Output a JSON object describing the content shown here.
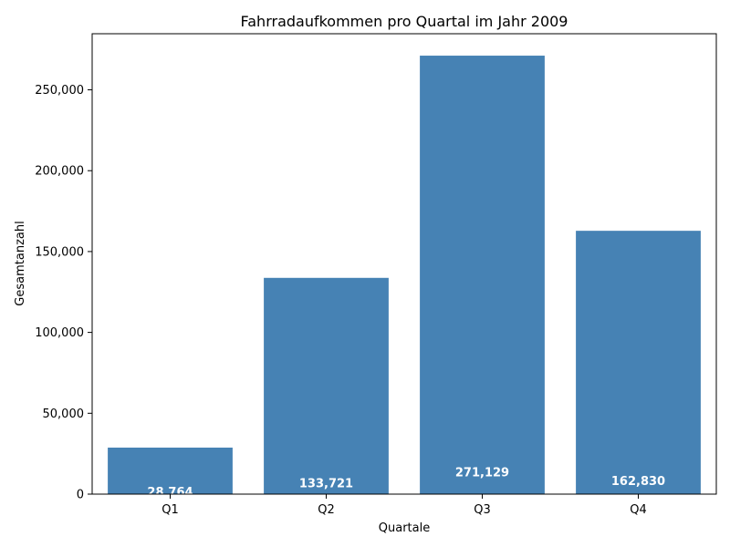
{
  "chart_data": {
    "type": "bar",
    "title": "Fahrradaufkommen pro Quartal im Jahr 2009",
    "xlabel": "Quartale",
    "ylabel": "Gesamtanzahl",
    "categories": [
      "Q1",
      "Q2",
      "Q3",
      "Q4"
    ],
    "values": [
      28764,
      133721,
      271129,
      162830
    ],
    "data_labels": [
      "28,764",
      "133,721",
      "271,129",
      "162,830"
    ],
    "ylim": [
      0,
      284685
    ],
    "y_ticks": [
      0,
      50000,
      100000,
      150000,
      200000,
      250000
    ],
    "y_tick_labels": [
      "0",
      "50,000",
      "100,000",
      "150,000",
      "200,000",
      "250,000"
    ],
    "bar_color": "#4682b4",
    "grid": false,
    "legend": "none"
  }
}
